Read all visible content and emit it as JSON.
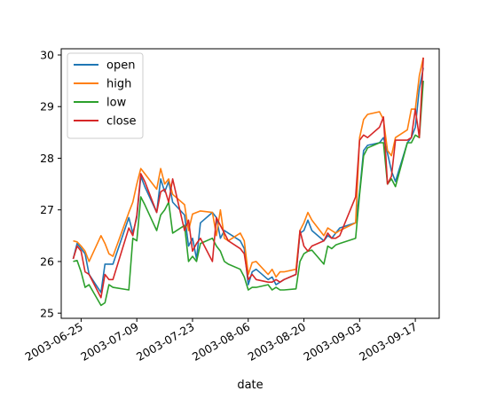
{
  "chart_data": {
    "type": "line",
    "title": "",
    "xlabel": "date",
    "ylabel": "",
    "x_type": "date",
    "xlim": [
      "2003-06-20",
      "2003-09-23"
    ],
    "ylim": [
      24.9,
      30.12
    ],
    "x_ticks": [
      "2003-06-25",
      "2003-07-09",
      "2003-07-23",
      "2003-08-06",
      "2003-08-20",
      "2003-09-03",
      "2003-09-17"
    ],
    "y_ticks": [
      25,
      26,
      27,
      28,
      29,
      30
    ],
    "grid": false,
    "legend_position": "top-left",
    "x": [
      "2003-06-23",
      "2003-06-24",
      "2003-06-25",
      "2003-06-26",
      "2003-06-27",
      "2003-06-30",
      "2003-07-01",
      "2003-07-02",
      "2003-07-03",
      "2003-07-07",
      "2003-07-08",
      "2003-07-09",
      "2003-07-10",
      "2003-07-11",
      "2003-07-14",
      "2003-07-15",
      "2003-07-16",
      "2003-07-17",
      "2003-07-18",
      "2003-07-21",
      "2003-07-22",
      "2003-07-23",
      "2003-07-24",
      "2003-07-25",
      "2003-07-28",
      "2003-07-29",
      "2003-07-30",
      "2003-07-31",
      "2003-08-01",
      "2003-08-04",
      "2003-08-05",
      "2003-08-06",
      "2003-08-07",
      "2003-08-08",
      "2003-08-11",
      "2003-08-12",
      "2003-08-13",
      "2003-08-14",
      "2003-08-15",
      "2003-08-18",
      "2003-08-19",
      "2003-08-20",
      "2003-08-21",
      "2003-08-22",
      "2003-08-25",
      "2003-08-26",
      "2003-08-27",
      "2003-08-28",
      "2003-08-29",
      "2003-09-02",
      "2003-09-03",
      "2003-09-04",
      "2003-09-05",
      "2003-09-08",
      "2003-09-09",
      "2003-09-10",
      "2003-09-11",
      "2003-09-12",
      "2003-09-15",
      "2003-09-16",
      "2003-09-17",
      "2003-09-18",
      "2003-09-19"
    ],
    "series": [
      {
        "name": "open",
        "color": "#1f77b4",
        "values": [
          26.05,
          26.35,
          26.25,
          26.15,
          25.75,
          25.4,
          25.95,
          25.95,
          25.95,
          26.85,
          26.55,
          26.85,
          27.65,
          27.45,
          26.95,
          27.6,
          27.35,
          27.55,
          27.15,
          26.9,
          26.3,
          26.45,
          26.05,
          26.75,
          26.95,
          26.85,
          26.45,
          26.6,
          26.55,
          26.4,
          26.25,
          25.55,
          25.8,
          25.85,
          25.65,
          25.7,
          25.55,
          25.6,
          25.65,
          25.75,
          26.55,
          26.6,
          26.8,
          26.6,
          26.4,
          26.5,
          26.45,
          26.55,
          26.65,
          26.75,
          27.35,
          28.15,
          28.25,
          28.3,
          28.4,
          28.1,
          27.75,
          27.55,
          28.3,
          28.4,
          28.6,
          29.35,
          29.75
        ]
      },
      {
        "name": "high",
        "color": "#ff7f0e",
        "values": [
          26.4,
          26.38,
          26.3,
          26.2,
          26.0,
          26.5,
          26.35,
          26.15,
          26.1,
          26.95,
          27.15,
          27.5,
          27.8,
          27.7,
          27.4,
          27.8,
          27.5,
          27.6,
          27.3,
          27.1,
          26.6,
          26.92,
          26.95,
          26.98,
          26.95,
          26.5,
          27.0,
          26.45,
          26.4,
          26.55,
          26.4,
          25.75,
          25.98,
          26.0,
          25.75,
          25.85,
          25.7,
          25.8,
          25.8,
          25.85,
          26.6,
          26.75,
          26.95,
          26.8,
          26.5,
          26.65,
          26.6,
          26.55,
          26.6,
          26.75,
          28.4,
          28.75,
          28.85,
          28.9,
          28.75,
          28.15,
          28.05,
          28.4,
          28.55,
          28.95,
          28.95,
          29.6,
          29.95
        ]
      },
      {
        "name": "low",
        "color": "#2ca02c",
        "values": [
          26.0,
          26.02,
          25.8,
          25.5,
          25.55,
          25.15,
          25.2,
          25.55,
          25.5,
          25.45,
          26.45,
          26.4,
          27.25,
          27.1,
          26.6,
          26.9,
          27.0,
          27.15,
          26.55,
          26.7,
          26.0,
          26.1,
          26.0,
          26.35,
          26.45,
          26.3,
          26.2,
          26.0,
          25.95,
          25.85,
          25.7,
          25.45,
          25.5,
          25.5,
          25.55,
          25.45,
          25.5,
          25.45,
          25.45,
          25.47,
          26.0,
          26.15,
          26.2,
          26.22,
          25.95,
          26.3,
          26.25,
          26.32,
          26.35,
          26.45,
          27.3,
          28.05,
          28.2,
          28.3,
          28.3,
          27.5,
          27.6,
          27.45,
          28.3,
          28.3,
          28.45,
          28.4,
          29.5
        ]
      },
      {
        "name": "close",
        "color": "#d62728",
        "values": [
          26.05,
          26.3,
          26.2,
          25.8,
          25.75,
          25.3,
          25.75,
          25.65,
          25.65,
          26.65,
          26.5,
          26.9,
          27.7,
          27.55,
          26.95,
          27.35,
          27.4,
          27.15,
          27.6,
          26.6,
          26.8,
          26.2,
          26.35,
          26.45,
          26.0,
          26.85,
          26.7,
          26.55,
          26.4,
          26.25,
          26.15,
          25.65,
          25.75,
          25.65,
          25.6,
          25.6,
          25.65,
          25.6,
          25.65,
          25.75,
          26.6,
          26.3,
          26.2,
          26.3,
          26.4,
          26.55,
          26.45,
          26.45,
          26.5,
          27.25,
          28.35,
          28.45,
          28.4,
          28.6,
          28.8,
          27.5,
          27.65,
          28.35,
          28.35,
          28.4,
          28.95,
          28.4,
          29.95
        ]
      }
    ]
  }
}
